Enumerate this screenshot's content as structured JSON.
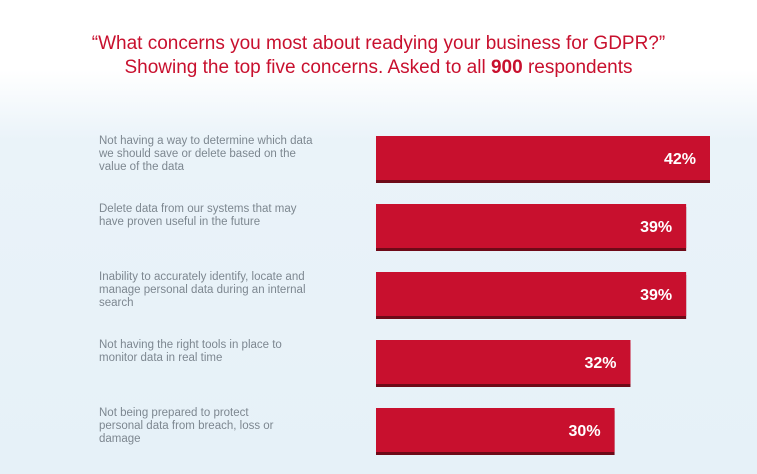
{
  "chart_data": {
    "type": "bar",
    "orientation": "horizontal",
    "title_line1": "“What concerns you most about readying your business for GDPR?”",
    "title_line2_prefix": "Showing the top five concerns. Asked to all ",
    "title_line2_number": "900",
    "title_line2_suffix": " respondents",
    "categories": [
      [
        "Not having a way to determine which data",
        "we should save or delete based on the",
        "value of the data"
      ],
      [
        "Delete data from our systems that may",
        "have proven useful in the future"
      ],
      [
        "Inability to accurately identify, locate and",
        "manage personal data during an internal",
        "search"
      ],
      [
        "Not having the right tools in place to",
        "monitor data in real time"
      ],
      [
        "Not being prepared to protect",
        "personal data from breach, loss or",
        "damage"
      ]
    ],
    "values": [
      42,
      39,
      39,
      32,
      30
    ],
    "value_labels": [
      "42%",
      "39%",
      "39%",
      "32%",
      "30%"
    ],
    "unit": "%",
    "xlim": [
      0,
      42
    ],
    "colors": {
      "bar": "#c8102e",
      "bar_shadow": "#6e0a18",
      "title": "#c8102e",
      "label": "#7d8790",
      "value_text": "#ffffff"
    },
    "grid": false,
    "legend": "none"
  }
}
